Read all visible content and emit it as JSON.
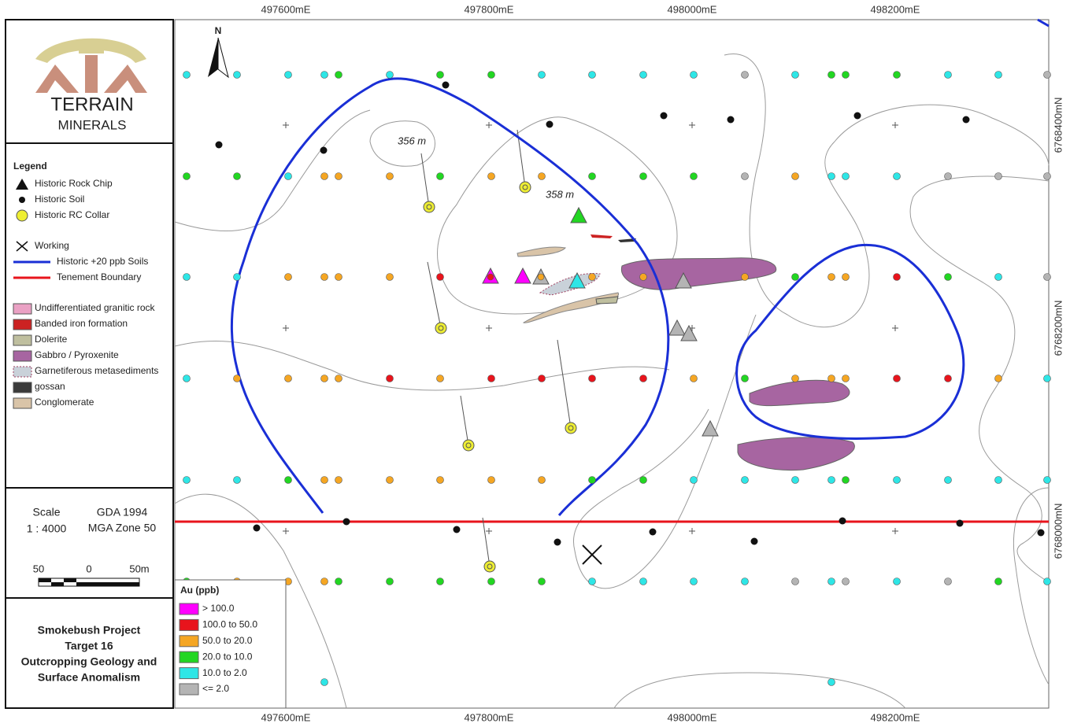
{
  "logo": {
    "line1": "TERRAIN",
    "line2": "MINERALS"
  },
  "legend": {
    "title": "Legend",
    "items": [
      "Historic Rock Chip",
      "Historic Soil",
      "Historic RC Collar",
      "Working",
      "Historic +20 ppb Soils",
      "Tenement Boundary",
      "Undifferentiated granitic rock",
      "Banded iron formation",
      "Dolerite",
      "Gabbro / Pyroxenite",
      "Garnetiferous metasediments",
      "gossan",
      "Conglomerate"
    ]
  },
  "scale": {
    "label": "Scale",
    "ratio": "1 : 4000",
    "datum": "GDA 1994",
    "zone": "MGA Zone 50",
    "bar_labels": [
      "50",
      "0",
      "50m"
    ]
  },
  "title": [
    "Smokebush Project",
    "Target 16",
    "Outcropping Geology and",
    "Surface Anomalism"
  ],
  "au_legend": {
    "title": "Au (ppb)",
    "classes": [
      {
        "label": "> 100.0",
        "color": "#ff00ff"
      },
      {
        "label": "100.0 to 50.0",
        "color": "#e8141c"
      },
      {
        "label": "50.0 to 20.0",
        "color": "#f5a623"
      },
      {
        "label": "20.0 to 10.0",
        "color": "#22d622"
      },
      {
        "label": "10.0 to 2.0",
        "color": "#2ee6e6"
      },
      {
        "label": "<= 2.0",
        "color": "#b4b4b4"
      }
    ]
  },
  "map": {
    "north": "N",
    "easting_labels": [
      "497600mE",
      "497800mE",
      "498000mE",
      "498200mE"
    ],
    "northing_labels": [
      "6768400mN",
      "6768200mN",
      "6768000mN"
    ],
    "contour_labels": [
      "356 m",
      "358 m"
    ]
  }
}
